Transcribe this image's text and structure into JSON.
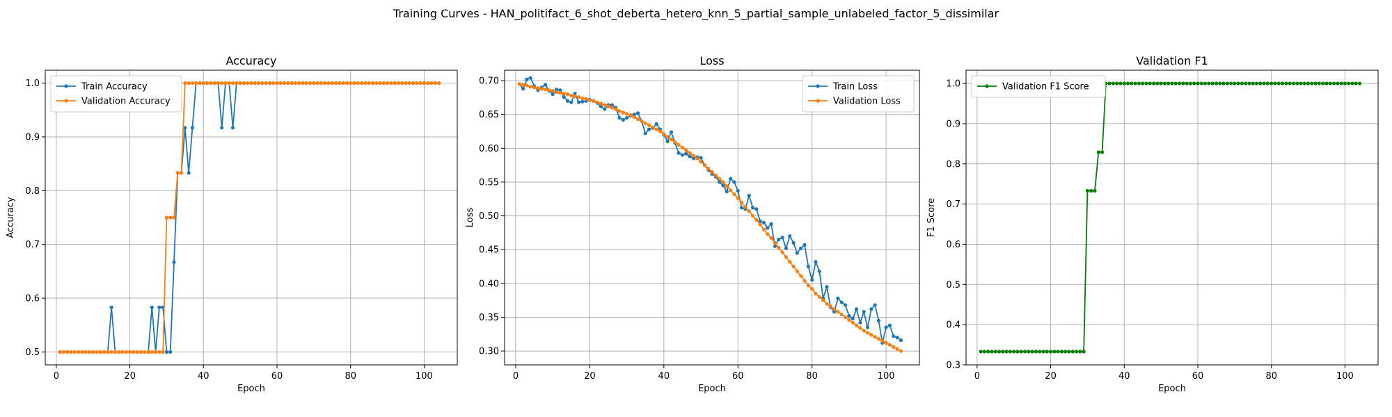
{
  "figure": {
    "suptitle": "Training Curves - HAN_politifact_6_shot_deberta_hetero_knn_5_partial_sample_unlabeled_factor_5_dissimilar"
  },
  "colors": {
    "train": "#1f77b4",
    "validation": "#ff7f0e",
    "f1": "#008000",
    "grid": "#b0b0b0"
  },
  "chart_data": [
    {
      "type": "line",
      "title": "Accuracy",
      "xlabel": "Epoch",
      "ylabel": "Accuracy",
      "xlim": [
        -3,
        109
      ],
      "ylim": [
        0.476,
        1.024
      ],
      "xticks": [
        "0",
        "20",
        "40",
        "60",
        "80",
        "100"
      ],
      "yticks": [
        "0.5",
        "0.6",
        "0.7",
        "0.8",
        "0.9",
        "1.0"
      ],
      "grid": true,
      "legend": "upper left",
      "epochs": [
        1,
        104
      ],
      "series": [
        {
          "name": "Train Accuracy",
          "values": [
            0.5,
            0.5,
            0.5,
            0.5,
            0.5,
            0.5,
            0.5,
            0.5,
            0.5,
            0.5,
            0.5,
            0.5,
            0.5,
            0.5,
            0.583,
            0.5,
            0.5,
            0.5,
            0.5,
            0.5,
            0.5,
            0.5,
            0.5,
            0.5,
            0.5,
            0.583,
            0.5,
            0.583,
            0.583,
            0.5,
            0.5,
            0.667,
            0.833,
            0.833,
            0.917,
            0.833,
            0.917,
            1.0,
            1.0,
            1.0,
            1.0,
            1.0,
            1.0,
            1.0,
            0.917,
            1.0,
            1.0,
            0.917,
            1.0,
            1.0,
            1.0,
            1.0,
            1.0,
            1.0,
            1.0,
            1.0,
            1.0,
            1.0,
            1.0,
            1.0,
            1.0,
            1.0,
            1.0,
            1.0,
            1.0,
            1.0,
            1.0,
            1.0,
            1.0,
            1.0,
            1.0,
            1.0,
            1.0,
            1.0,
            1.0,
            1.0,
            1.0,
            1.0,
            1.0,
            1.0,
            1.0,
            1.0,
            1.0,
            1.0,
            1.0,
            1.0,
            1.0,
            1.0,
            1.0,
            1.0,
            1.0,
            1.0,
            1.0,
            1.0,
            1.0,
            1.0,
            1.0,
            1.0,
            1.0,
            1.0,
            1.0,
            1.0,
            1.0,
            1.0
          ]
        },
        {
          "name": "Validation Accuracy",
          "values": [
            0.5,
            0.5,
            0.5,
            0.5,
            0.5,
            0.5,
            0.5,
            0.5,
            0.5,
            0.5,
            0.5,
            0.5,
            0.5,
            0.5,
            0.5,
            0.5,
            0.5,
            0.5,
            0.5,
            0.5,
            0.5,
            0.5,
            0.5,
            0.5,
            0.5,
            0.5,
            0.5,
            0.5,
            0.5,
            0.75,
            0.75,
            0.75,
            0.833,
            0.833,
            1.0,
            1.0,
            1.0,
            1.0,
            1.0,
            1.0,
            1.0,
            1.0,
            1.0,
            1.0,
            1.0,
            1.0,
            1.0,
            1.0,
            1.0,
            1.0,
            1.0,
            1.0,
            1.0,
            1.0,
            1.0,
            1.0,
            1.0,
            1.0,
            1.0,
            1.0,
            1.0,
            1.0,
            1.0,
            1.0,
            1.0,
            1.0,
            1.0,
            1.0,
            1.0,
            1.0,
            1.0,
            1.0,
            1.0,
            1.0,
            1.0,
            1.0,
            1.0,
            1.0,
            1.0,
            1.0,
            1.0,
            1.0,
            1.0,
            1.0,
            1.0,
            1.0,
            1.0,
            1.0,
            1.0,
            1.0,
            1.0,
            1.0,
            1.0,
            1.0,
            1.0,
            1.0,
            1.0,
            1.0,
            1.0,
            1.0,
            1.0,
            1.0,
            1.0,
            1.0
          ]
        }
      ]
    },
    {
      "type": "line",
      "title": "Loss",
      "xlabel": "Epoch",
      "ylabel": "Loss",
      "xlim": [
        -3,
        109
      ],
      "ylim": [
        0.2795,
        0.7155
      ],
      "xticks": [
        "0",
        "20",
        "40",
        "60",
        "80",
        "100"
      ],
      "yticks": [
        "0.30",
        "0.35",
        "0.40",
        "0.45",
        "0.50",
        "0.55",
        "0.60",
        "0.65",
        "0.70"
      ],
      "grid": true,
      "legend": "upper right",
      "epochs": [
        1,
        104
      ],
      "series": [
        {
          "name": "Train Loss",
          "values": [
            0.695,
            0.688,
            0.702,
            0.704,
            0.692,
            0.686,
            0.69,
            0.694,
            0.685,
            0.68,
            0.687,
            0.686,
            0.676,
            0.67,
            0.668,
            0.681,
            0.668,
            0.669,
            0.67,
            0.672,
            0.67,
            0.667,
            0.662,
            0.658,
            0.664,
            0.664,
            0.66,
            0.645,
            0.642,
            0.645,
            0.648,
            0.65,
            0.652,
            0.64,
            0.622,
            0.628,
            0.63,
            0.636,
            0.628,
            0.62,
            0.61,
            0.624,
            0.608,
            0.593,
            0.59,
            0.592,
            0.588,
            0.585,
            0.587,
            0.586,
            0.575,
            0.568,
            0.562,
            0.558,
            0.55,
            0.545,
            0.536,
            0.555,
            0.55,
            0.537,
            0.512,
            0.51,
            0.53,
            0.512,
            0.51,
            0.492,
            0.49,
            0.482,
            0.488,
            0.455,
            0.465,
            0.468,
            0.452,
            0.47,
            0.46,
            0.445,
            0.452,
            0.457,
            0.425,
            0.405,
            0.432,
            0.418,
            0.378,
            0.395,
            0.365,
            0.358,
            0.378,
            0.372,
            0.368,
            0.352,
            0.348,
            0.362,
            0.342,
            0.358,
            0.335,
            0.362,
            0.368,
            0.345,
            0.312,
            0.335,
            0.338,
            0.322,
            0.32,
            0.316
          ]
        },
        {
          "name": "Validation Loss",
          "values": [
            0.695,
            0.694,
            0.693,
            0.691,
            0.69,
            0.689,
            0.688,
            0.687,
            0.686,
            0.685,
            0.683,
            0.682,
            0.681,
            0.68,
            0.678,
            0.677,
            0.676,
            0.674,
            0.673,
            0.671,
            0.67,
            0.668,
            0.666,
            0.664,
            0.662,
            0.66,
            0.658,
            0.655,
            0.653,
            0.651,
            0.649,
            0.646,
            0.643,
            0.64,
            0.637,
            0.634,
            0.631,
            0.628,
            0.625,
            0.621,
            0.617,
            0.613,
            0.609,
            0.605,
            0.601,
            0.597,
            0.593,
            0.589,
            0.585,
            0.58,
            0.575,
            0.57,
            0.565,
            0.56,
            0.555,
            0.55,
            0.544,
            0.538,
            0.532,
            0.526,
            0.52,
            0.513,
            0.507,
            0.5,
            0.494,
            0.487,
            0.48,
            0.473,
            0.467,
            0.46,
            0.453,
            0.446,
            0.439,
            0.432,
            0.425,
            0.418,
            0.411,
            0.404,
            0.397,
            0.392,
            0.385,
            0.38,
            0.375,
            0.37,
            0.366,
            0.362,
            0.358,
            0.354,
            0.35,
            0.346,
            0.342,
            0.338,
            0.334,
            0.33,
            0.327,
            0.324,
            0.321,
            0.318,
            0.315,
            0.312,
            0.309,
            0.306,
            0.303,
            0.3
          ]
        }
      ]
    },
    {
      "type": "line",
      "title": "Validation F1",
      "xlabel": "Epoch",
      "ylabel": "F1 Score",
      "xlim": [
        -3,
        109
      ],
      "ylim": [
        0.3,
        1.033
      ],
      "xticks": [
        "0",
        "20",
        "40",
        "60",
        "80",
        "100"
      ],
      "yticks": [
        "0.3",
        "0.4",
        "0.5",
        "0.6",
        "0.7",
        "0.8",
        "0.9",
        "1.0"
      ],
      "grid": true,
      "legend": "upper left",
      "epochs": [
        1,
        104
      ],
      "series": [
        {
          "name": "Validation F1 Score",
          "values": [
            0.333,
            0.333,
            0.333,
            0.333,
            0.333,
            0.333,
            0.333,
            0.333,
            0.333,
            0.333,
            0.333,
            0.333,
            0.333,
            0.333,
            0.333,
            0.333,
            0.333,
            0.333,
            0.333,
            0.333,
            0.333,
            0.333,
            0.333,
            0.333,
            0.333,
            0.333,
            0.333,
            0.333,
            0.333,
            0.733,
            0.733,
            0.733,
            0.829,
            0.829,
            1.0,
            1.0,
            1.0,
            1.0,
            1.0,
            1.0,
            1.0,
            1.0,
            1.0,
            1.0,
            1.0,
            1.0,
            1.0,
            1.0,
            1.0,
            1.0,
            1.0,
            1.0,
            1.0,
            1.0,
            1.0,
            1.0,
            1.0,
            1.0,
            1.0,
            1.0,
            1.0,
            1.0,
            1.0,
            1.0,
            1.0,
            1.0,
            1.0,
            1.0,
            1.0,
            1.0,
            1.0,
            1.0,
            1.0,
            1.0,
            1.0,
            1.0,
            1.0,
            1.0,
            1.0,
            1.0,
            1.0,
            1.0,
            1.0,
            1.0,
            1.0,
            1.0,
            1.0,
            1.0,
            1.0,
            1.0,
            1.0,
            1.0,
            1.0,
            1.0,
            1.0,
            1.0,
            1.0,
            1.0,
            1.0,
            1.0,
            1.0,
            1.0,
            1.0,
            1.0
          ]
        }
      ]
    }
  ]
}
